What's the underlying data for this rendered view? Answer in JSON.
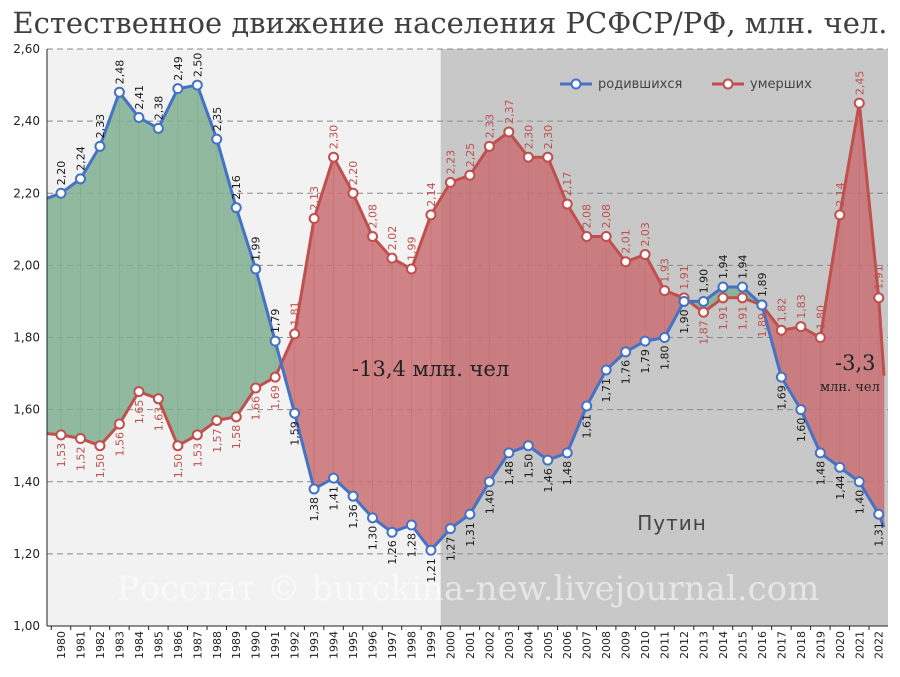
{
  "chart_data": {
    "type": "line",
    "title": "Естественное движение населения РСФСР/РФ, млн. чел.",
    "categories": [
      "1980",
      "1981",
      "1982",
      "1983",
      "1984",
      "1985",
      "1986",
      "1987",
      "1988",
      "1989",
      "1990",
      "1991",
      "1992",
      "1993",
      "1994",
      "1995",
      "1996",
      "1997",
      "1998",
      "1999",
      "2000",
      "2001",
      "2002",
      "2003",
      "2004",
      "2005",
      "2006",
      "2007",
      "2008",
      "2009",
      "2010",
      "2011",
      "2012",
      "2013",
      "2014",
      "2015",
      "2016",
      "2017",
      "2018",
      "2019",
      "2020",
      "2021",
      "2022"
    ],
    "series": [
      {
        "name": "родившихся",
        "color": "#4472C4",
        "values": [
          2.2,
          2.24,
          2.33,
          2.48,
          2.41,
          2.38,
          2.49,
          2.5,
          2.35,
          2.16,
          1.99,
          1.79,
          1.59,
          1.38,
          1.41,
          1.36,
          1.3,
          1.26,
          1.28,
          1.21,
          1.27,
          1.31,
          1.4,
          1.48,
          1.5,
          1.46,
          1.48,
          1.61,
          1.71,
          1.76,
          1.79,
          1.8,
          1.9,
          1.9,
          1.94,
          1.94,
          1.89,
          1.69,
          1.6,
          1.48,
          1.44,
          1.4,
          1.31
        ],
        "labels": [
          "2,20",
          "2,24",
          "2,33",
          "2,48",
          "2,41",
          "2,38",
          "2,49",
          "2,50",
          "2,35",
          "2,16",
          "1,99",
          "1,79",
          "1,59",
          "1,38",
          "1,41",
          "1,36",
          "1,30",
          "1,26",
          "1,28",
          "1,21",
          "1,27",
          "1,31",
          "1,40",
          "1,48",
          "1,50",
          "1,46",
          "1,48",
          "1,61",
          "1,71",
          "1,76",
          "1,79",
          "1,80",
          "1,90",
          "1,90",
          "1,94",
          "1,94",
          "1,89",
          "1,69",
          "1,60",
          "1,48",
          "1,44",
          "1,40",
          "1,31"
        ]
      },
      {
        "name": "умерших",
        "color": "#C0504D",
        "values": [
          1.53,
          1.52,
          1.5,
          1.56,
          1.65,
          1.63,
          1.5,
          1.53,
          1.57,
          1.58,
          1.66,
          1.69,
          1.81,
          2.13,
          2.3,
          2.2,
          2.08,
          2.02,
          1.99,
          2.14,
          2.23,
          2.25,
          2.33,
          2.37,
          2.3,
          2.3,
          2.17,
          2.08,
          2.08,
          2.01,
          2.03,
          1.93,
          1.91,
          1.87,
          1.91,
          1.91,
          1.89,
          1.82,
          1.83,
          1.8,
          2.14,
          2.45,
          1.91
        ],
        "labels": [
          "1,53",
          "1,52",
          "1,50",
          "1,56",
          "1,65",
          "1,63",
          "1,50",
          "1,53",
          "1,57",
          "1,58",
          "1,66",
          "1,69",
          "1,81",
          "2,13",
          "2,30",
          "2,20",
          "2,08",
          "2,02",
          "1,99",
          "2,14",
          "2,23",
          "2,25",
          "2,33",
          "2,37",
          "2,30",
          "2,30",
          "2,17",
          "2,08",
          "2,08",
          "2,01",
          "2,03",
          "1,93",
          "1,91",
          "1,87",
          "1,91",
          "1,91",
          "1,89",
          "1,82",
          "1,83",
          "1,80",
          "2,14",
          "2,45",
          "1,91"
        ]
      }
    ],
    "ylim": [
      1.0,
      2.6
    ],
    "yticks": [
      1.0,
      1.2,
      1.4,
      1.6,
      1.8,
      2.0,
      2.2,
      2.4,
      2.6
    ],
    "ytick_labels": [
      "1,00",
      "1,20",
      "1,40",
      "1,60",
      "1,80",
      "2,00",
      "2,20",
      "2,40",
      "2,60"
    ],
    "grid": true,
    "legend": "top-right",
    "annotations": {
      "deficit_main": "-13,4 млн. чел",
      "deficit_recent_value": "-3,3",
      "deficit_recent_unit": "млн. чел",
      "period_label": "Путин"
    },
    "shaded_period_start": "2000",
    "colors": {
      "births_fill": "#7FAF92",
      "deaths_fill": "#C97073",
      "left_bg": "#F2F2F2",
      "right_bg": "#C8C8C8"
    }
  },
  "watermark": "Росстат © burckina-new.livejournal.com"
}
